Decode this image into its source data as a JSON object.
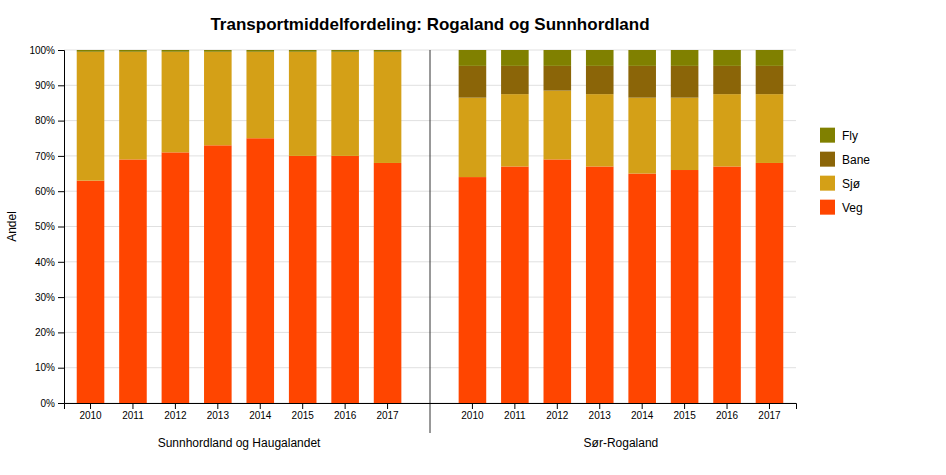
{
  "chart_data": {
    "type": "bar",
    "stacked": true,
    "title": "Transportmiddelfordeling: Rogaland og Sunnhordland",
    "y_label": "Andel",
    "categories": [
      "2010",
      "2011",
      "2012",
      "2013",
      "2014",
      "2015",
      "2016",
      "2017",
      "2010",
      "2011",
      "2012",
      "2013",
      "2014",
      "2015",
      "2016",
      "2017"
    ],
    "annotations": [
      "Sunnhordland og Haugalandet",
      "Sør-Rogaland"
    ],
    "series": [
      {
        "name": "Veg",
        "color": "#FF4500",
        "values": [
          0.63,
          0.69,
          0.71,
          0.73,
          0.75,
          0.7,
          0.7,
          0.68,
          0.64,
          0.67,
          0.69,
          0.67,
          0.65,
          0.66,
          0.67,
          0.68
        ]
      },
      {
        "name": "Sjø",
        "color": "#D4A017",
        "values": [
          0.365,
          0.305,
          0.285,
          0.265,
          0.245,
          0.295,
          0.295,
          0.315,
          0.225,
          0.205,
          0.195,
          0.205,
          0.215,
          0.205,
          0.205,
          0.195
        ]
      },
      {
        "name": "Bane",
        "color": "#8B6508",
        "values": [
          0.0,
          0.0,
          0.0,
          0.0,
          0.0,
          0.0,
          0.0,
          0.0,
          0.09,
          0.08,
          0.07,
          0.08,
          0.09,
          0.09,
          0.08,
          0.08
        ]
      },
      {
        "name": "Fly",
        "color": "#808000",
        "values": [
          0.005,
          0.005,
          0.005,
          0.005,
          0.005,
          0.005,
          0.005,
          0.005,
          0.045,
          0.045,
          0.045,
          0.045,
          0.045,
          0.045,
          0.045,
          0.045
        ]
      }
    ],
    "ylim": [
      0,
      1.0
    ],
    "yticks": [
      {
        "value": 0,
        "label": "0%"
      },
      {
        "value": 0.1,
        "label": "10%"
      },
      {
        "value": 0.2,
        "label": "20%"
      },
      {
        "value": 0.3,
        "label": "30%"
      },
      {
        "value": 0.4,
        "label": "40%"
      },
      {
        "value": 0.5,
        "label": "50%"
      },
      {
        "value": 0.6,
        "label": "60%"
      },
      {
        "value": 0.7,
        "label": "70%"
      },
      {
        "value": 0.8,
        "label": "80%"
      },
      {
        "value": 0.9,
        "label": "90%"
      },
      {
        "value": 1.0,
        "label": "100%"
      }
    ],
    "grid": true,
    "legend": "right"
  }
}
